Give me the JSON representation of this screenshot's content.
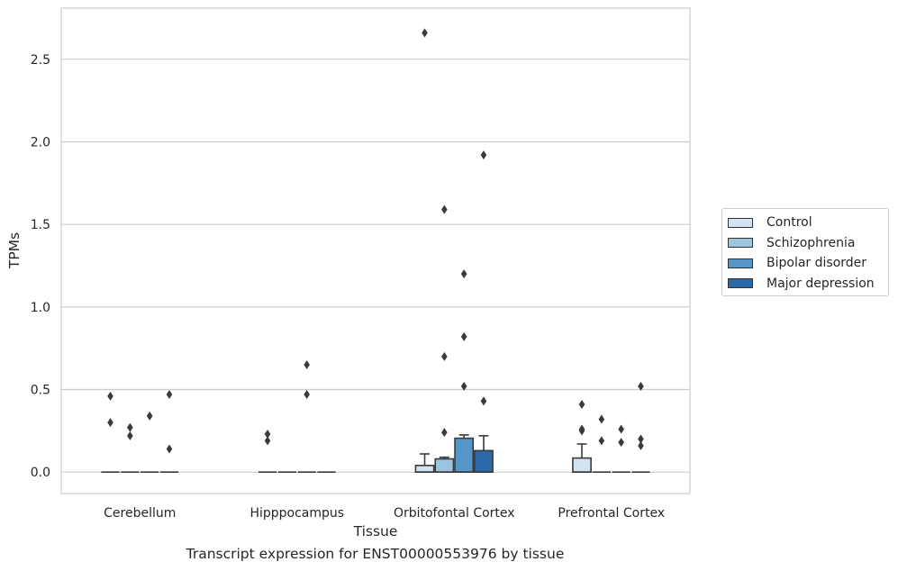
{
  "caption": "Transcript expression for ENST00000553976 by tissue",
  "chart_data": {
    "type": "box",
    "xlabel": "Tissue",
    "ylabel": "TPMs",
    "ylim": [
      -0.13,
      2.81
    ],
    "yticks": [
      0.0,
      0.5,
      1.0,
      1.5,
      2.0,
      2.5
    ],
    "ytick_labels": [
      "0.0",
      "0.5",
      "1.0",
      "1.5",
      "2.0",
      "2.5"
    ],
    "grid": "horizontal",
    "legend_position": "center-right",
    "categories": [
      "Cerebellum",
      "Hipppocampus",
      "Orbitofontal Cortex",
      "Prefrontal Cortex"
    ],
    "series": [
      {
        "name": "Control",
        "color": "#d4e3f1",
        "boxes": [
          {
            "q1": 0,
            "median": 0,
            "q3": 0,
            "whislo": 0,
            "whishi": 0,
            "outliers": [
              0.46,
              0.3
            ]
          },
          {
            "q1": 0,
            "median": 0,
            "q3": 0,
            "whislo": 0,
            "whishi": 0,
            "outliers": [
              0.23,
              0.19
            ]
          },
          {
            "q1": 0,
            "median": 0,
            "q3": 0.04,
            "whislo": 0,
            "whishi": 0.11,
            "outliers": [
              2.66
            ]
          },
          {
            "q1": 0,
            "median": 0,
            "q3": 0.085,
            "whislo": 0,
            "whishi": 0.17,
            "outliers": [
              0.41,
              0.26,
              0.25
            ]
          }
        ]
      },
      {
        "name": "Schizophrenia",
        "color": "#9ac4e0",
        "boxes": [
          {
            "q1": 0,
            "median": 0,
            "q3": 0,
            "whislo": 0,
            "whishi": 0,
            "outliers": [
              0.27,
              0.22
            ]
          },
          {
            "q1": 0,
            "median": 0,
            "q3": 0,
            "whislo": 0,
            "whishi": 0,
            "outliers": []
          },
          {
            "q1": 0,
            "median": 0,
            "q3": 0.08,
            "whislo": 0,
            "whishi": 0.09,
            "outliers": [
              1.59,
              0.7,
              0.24
            ]
          },
          {
            "q1": 0,
            "median": 0,
            "q3": 0,
            "whislo": 0,
            "whishi": 0,
            "outliers": [
              0.32,
              0.19
            ]
          }
        ]
      },
      {
        "name": "Bipolar disorder",
        "color": "#5597c9",
        "boxes": [
          {
            "q1": 0,
            "median": 0,
            "q3": 0,
            "whislo": 0,
            "whishi": 0,
            "outliers": [
              0.34
            ]
          },
          {
            "q1": 0,
            "median": 0,
            "q3": 0,
            "whislo": 0,
            "whishi": 0,
            "outliers": [
              0.65,
              0.47
            ]
          },
          {
            "q1": 0,
            "median": 0,
            "q3": 0.205,
            "whislo": 0,
            "whishi": 0.225,
            "outliers": [
              1.2,
              0.82,
              0.52
            ]
          },
          {
            "q1": 0,
            "median": 0,
            "q3": 0,
            "whislo": 0,
            "whishi": 0,
            "outliers": [
              0.26,
              0.18
            ]
          }
        ]
      },
      {
        "name": "Major depression",
        "color": "#2b69a8",
        "boxes": [
          {
            "q1": 0,
            "median": 0,
            "q3": 0,
            "whislo": 0,
            "whishi": 0,
            "outliers": [
              0.47,
              0.14
            ]
          },
          {
            "q1": 0,
            "median": 0,
            "q3": 0,
            "whislo": 0,
            "whishi": 0,
            "outliers": []
          },
          {
            "q1": 0,
            "median": 0,
            "q3": 0.13,
            "whislo": 0,
            "whishi": 0.22,
            "outliers": [
              1.92,
              0.43
            ]
          },
          {
            "q1": 0,
            "median": 0,
            "q3": 0,
            "whislo": 0,
            "whishi": 0,
            "outliers": [
              0.52,
              0.2,
              0.16
            ]
          }
        ]
      }
    ]
  }
}
